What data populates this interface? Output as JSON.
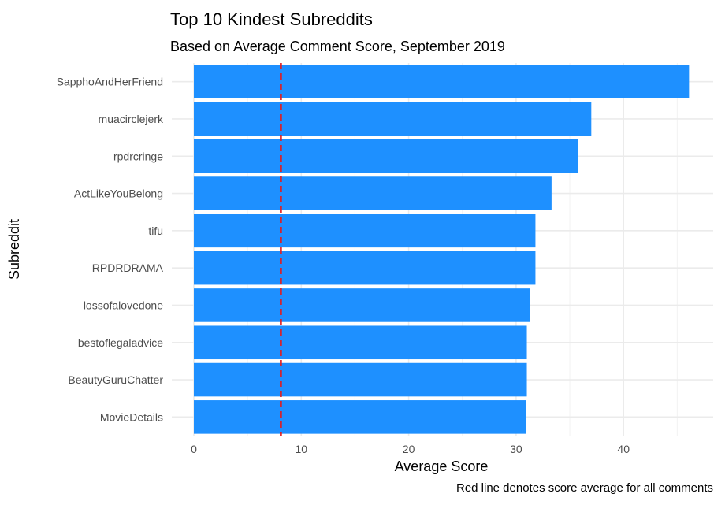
{
  "chart_data": {
    "type": "bar",
    "orientation": "horizontal",
    "title": "Top 10 Kindest Subreddits",
    "subtitle": "Based on Average Comment Score, September 2019",
    "caption": "Red line denotes score average for all comments",
    "xlabel": "Average Score",
    "ylabel": "Subreddit",
    "categories": [
      "SapphoAndHerFriend",
      "muacirclejerk",
      "rpdrcringe",
      "ActLikeYouBelong",
      "tifu",
      "RPDRDRAMA",
      "lossofalovedone",
      "bestoflegaladvice",
      "BeautyGuruChatter",
      "MovieDetails"
    ],
    "values": [
      46.1,
      37.0,
      35.8,
      33.3,
      31.8,
      31.8,
      31.3,
      31.0,
      31.0,
      30.9
    ],
    "xlim": [
      0,
      47
    ],
    "xticks": [
      0,
      10,
      20,
      30,
      40
    ],
    "reference_line": {
      "value": 8.1,
      "style": "dashed",
      "color": "#e41a1c"
    },
    "bar_color": "#1e90ff",
    "grid": true
  }
}
